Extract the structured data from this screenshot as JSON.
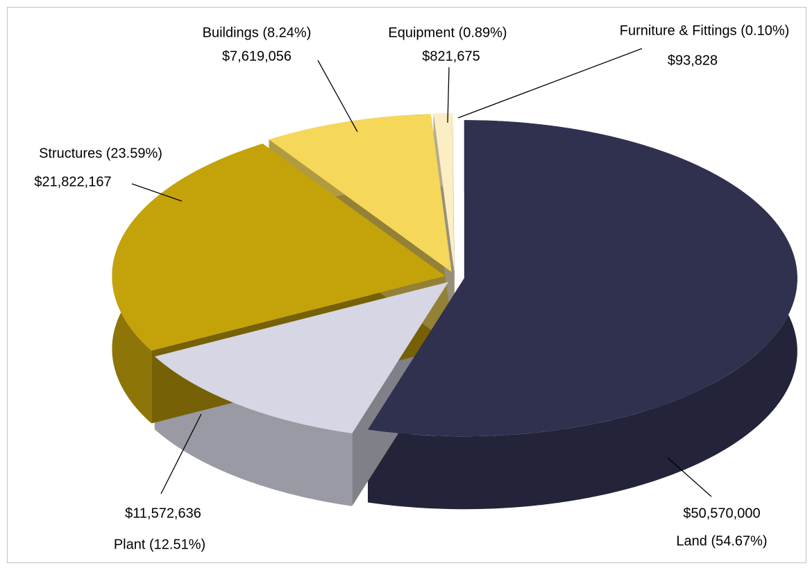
{
  "chart_data": {
    "type": "pie",
    "categories": [
      "Land (54.67%)",
      "Plant (12.51%)",
      "Structures (23.59%)",
      "Buildings (8.24%)",
      "Equipment (0.89%)",
      "Furniture & Fittings (0.10%)"
    ],
    "values": [
      50570000,
      11572636,
      21822167,
      7619056,
      821675,
      93828
    ],
    "value_labels": [
      "$50,570,000",
      "$11,572,636",
      "$21,822,167",
      "$7,619,056",
      "$821,675",
      "$93,828"
    ],
    "colors": [
      "#30304f",
      "#d6d6e4",
      "#c4a20a",
      "#f5d75a",
      "#fbeec4",
      "#fffbea"
    ]
  }
}
